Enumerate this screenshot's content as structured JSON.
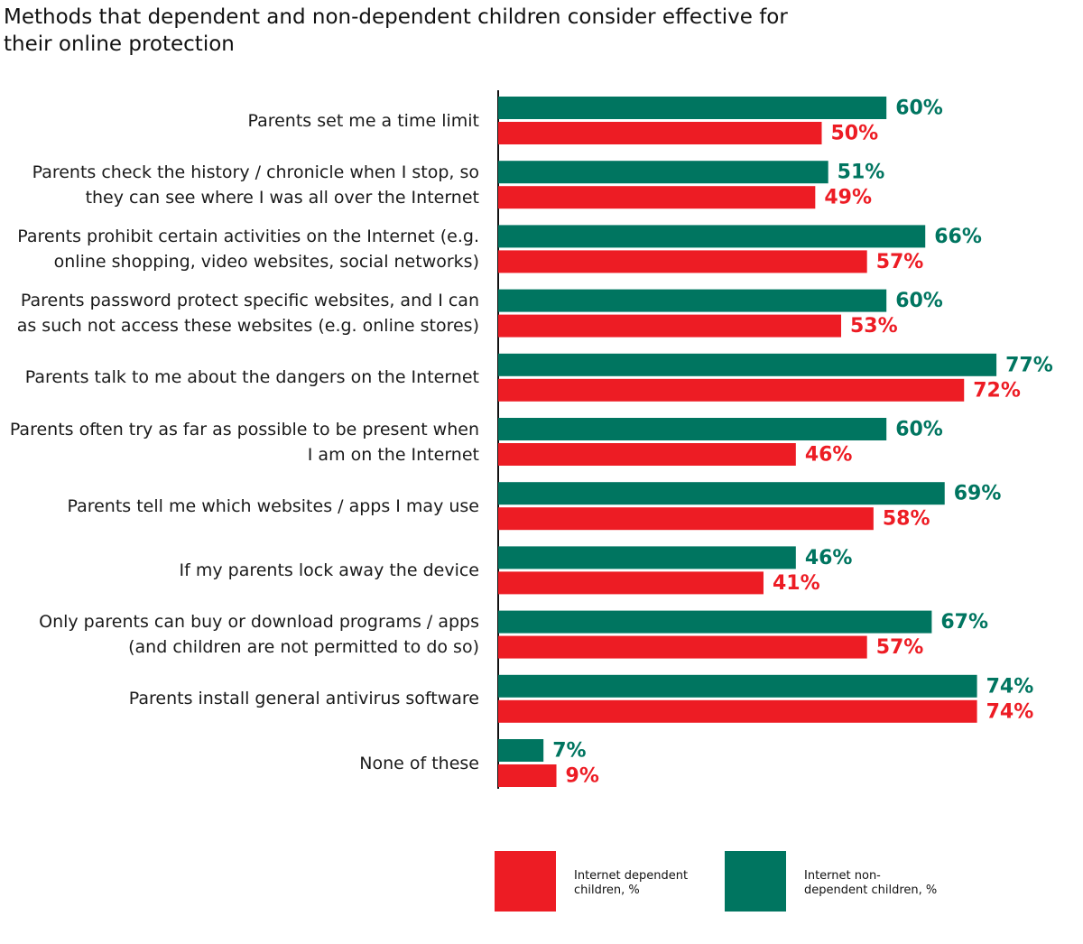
{
  "chart_data": {
    "type": "bar",
    "orientation": "horizontal",
    "title": "Methods that dependent and non-dependent children consider effective for their online protection",
    "categories": [
      "Parents set me a time limit",
      "Parents check the history / chronicle when I stop, so they can see where I was all over the Internet",
      "Parents prohibit certain activities on the Internet (e.g. online shopping, video websites, social networks)",
      "Parents password protect specific websites, and I can as such not access these websites (e.g. online stores)",
      "Parents talk to me about the dangers on the Internet",
      "Parents often try as far as possible to be present when I am on the Internet",
      "Parents tell me which websites / apps I may use",
      "If my parents lock away the device",
      "Only parents can buy or download programs / apps (and children are not permitted to do so)",
      "Parents install general antivirus software",
      "None of these"
    ],
    "series": [
      {
        "name": "Internet non-dependent children, %",
        "color": "#007560",
        "values": [
          60,
          51,
          66,
          60,
          77,
          60,
          69,
          46,
          67,
          74,
          7
        ],
        "value_labels": [
          "60%",
          "51%",
          "66%",
          "60%",
          "77%",
          "60%",
          "69%",
          "46%",
          "67%",
          "74%",
          "7%"
        ]
      },
      {
        "name": "Internet dependent children, %",
        "color": "#ed1c24",
        "values": [
          50,
          49,
          57,
          53,
          72,
          46,
          58,
          41,
          57,
          74,
          9
        ],
        "value_labels": [
          "50%",
          "49%",
          "57%",
          "53%",
          "72%",
          "46%",
          "58%",
          "41%",
          "57%",
          "74%",
          "9%"
        ]
      }
    ]
  }
}
